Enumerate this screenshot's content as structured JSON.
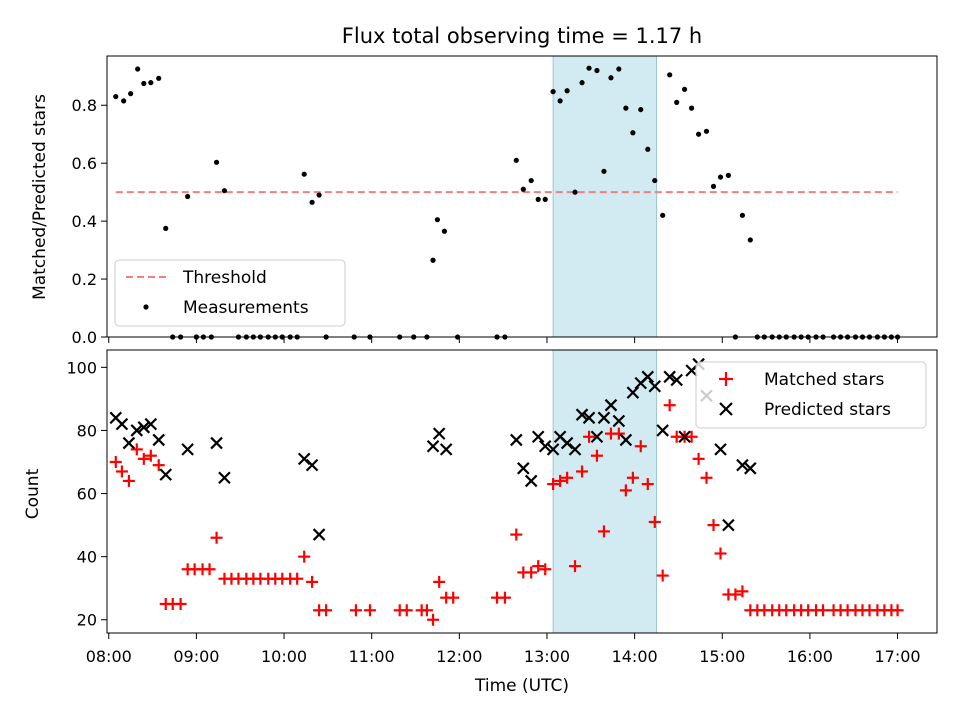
{
  "title": "Flux total observing time = 1.17 h",
  "colors": {
    "threshold": "#f08080",
    "measurement": "#000000",
    "matched": "#ff0000",
    "predicted": "#000000",
    "highlight": "#add8e6"
  },
  "chart_data": [
    {
      "type": "scatter",
      "name": "ratio",
      "title": "Flux total observing time = 1.17 h",
      "xlabel": "",
      "ylabel": "Matched/Predicted stars",
      "xlim": [
        7.98,
        17.45
      ],
      "ylim": [
        0,
        0.97
      ],
      "yticks": [
        0,
        0.2,
        0.4,
        0.6,
        0.8
      ],
      "ytick_labels": [
        "0.0",
        "0.2",
        "0.4",
        "0.6",
        "0.8"
      ],
      "highlight_x": [
        13.07,
        14.25
      ],
      "threshold": {
        "y": 0.5,
        "x": [
          8.08,
          17.0
        ],
        "label": "Threshold"
      },
      "legend": {
        "position": "lower-left",
        "entries": [
          "Threshold",
          "Measurements"
        ]
      },
      "series": [
        {
          "name": "Measurements",
          "marker": "dot",
          "points": [
            [
              8.08,
              0.83
            ],
            [
              8.17,
              0.815
            ],
            [
              8.25,
              0.84
            ],
            [
              8.33,
              0.925
            ],
            [
              8.4,
              0.875
            ],
            [
              8.48,
              0.878
            ],
            [
              8.57,
              0.893
            ],
            [
              8.65,
              0.375
            ],
            [
              8.73,
              0
            ],
            [
              8.82,
              0
            ],
            [
              8.9,
              0.485
            ],
            [
              9.0,
              0
            ],
            [
              9.08,
              0
            ],
            [
              9.17,
              0
            ],
            [
              9.23,
              0.603
            ],
            [
              9.32,
              0.505
            ],
            [
              9.48,
              0
            ],
            [
              9.57,
              0
            ],
            [
              9.65,
              0
            ],
            [
              9.73,
              0
            ],
            [
              9.82,
              0
            ],
            [
              9.9,
              0
            ],
            [
              9.98,
              0
            ],
            [
              10.07,
              0
            ],
            [
              10.15,
              0
            ],
            [
              10.23,
              0.562
            ],
            [
              10.32,
              0.465
            ],
            [
              10.4,
              0.49
            ],
            [
              10.48,
              0
            ],
            [
              10.8,
              0
            ],
            [
              10.98,
              0
            ],
            [
              11.32,
              0
            ],
            [
              11.48,
              0
            ],
            [
              11.63,
              0
            ],
            [
              11.7,
              0.265
            ],
            [
              11.75,
              0.405
            ],
            [
              11.83,
              0.365
            ],
            [
              11.98,
              0
            ],
            [
              12.43,
              0
            ],
            [
              12.52,
              0
            ],
            [
              12.65,
              0.61
            ],
            [
              12.73,
              0.51
            ],
            [
              12.82,
              0.54
            ],
            [
              12.9,
              0.475
            ],
            [
              12.98,
              0.475
            ],
            [
              13.07,
              0.847
            ],
            [
              13.15,
              0.815
            ],
            [
              13.23,
              0.85
            ],
            [
              13.32,
              0.5
            ],
            [
              13.4,
              0.878
            ],
            [
              13.48,
              0.928
            ],
            [
              13.57,
              0.92
            ],
            [
              13.65,
              0.572
            ],
            [
              13.73,
              0.895
            ],
            [
              13.82,
              0.925
            ],
            [
              13.9,
              0.79
            ],
            [
              13.98,
              0.705
            ],
            [
              14.07,
              0.785
            ],
            [
              14.15,
              0.648
            ],
            [
              14.23,
              0.54
            ],
            [
              14.32,
              0.42
            ],
            [
              14.4,
              0.905
            ],
            [
              14.48,
              0.81
            ],
            [
              14.57,
              0.855
            ],
            [
              14.65,
              0.79
            ],
            [
              14.73,
              0.7
            ],
            [
              14.82,
              0.71
            ],
            [
              14.9,
              0.52
            ],
            [
              14.98,
              0.552
            ],
            [
              15.07,
              0.558
            ],
            [
              15.15,
              0
            ],
            [
              15.23,
              0.42
            ],
            [
              15.32,
              0.335
            ],
            [
              15.4,
              0
            ],
            [
              15.48,
              0
            ],
            [
              15.57,
              0
            ],
            [
              15.65,
              0
            ],
            [
              15.73,
              0
            ],
            [
              15.82,
              0
            ],
            [
              15.9,
              0
            ],
            [
              15.98,
              0
            ],
            [
              16.07,
              0
            ],
            [
              16.15,
              0
            ],
            [
              16.27,
              0
            ],
            [
              16.35,
              0
            ],
            [
              16.43,
              0
            ],
            [
              16.52,
              0
            ],
            [
              16.6,
              0
            ],
            [
              16.68,
              0
            ],
            [
              16.77,
              0
            ],
            [
              16.85,
              0
            ],
            [
              16.93,
              0
            ],
            [
              17.0,
              0
            ]
          ]
        }
      ]
    },
    {
      "type": "scatter",
      "name": "count",
      "title": "",
      "xlabel": "Time (UTC)",
      "ylabel": "Count",
      "xlim": [
        7.98,
        17.45
      ],
      "ylim": [
        15.8,
        105.5
      ],
      "yticks": [
        20,
        40,
        60,
        80,
        100
      ],
      "ytick_labels": [
        "20",
        "40",
        "60",
        "80",
        "100"
      ],
      "xticks": [
        8,
        9,
        10,
        11,
        12,
        13,
        14,
        15,
        16,
        17
      ],
      "xtick_labels": [
        "08:00",
        "09:00",
        "10:00",
        "11:00",
        "12:00",
        "13:00",
        "14:00",
        "15:00",
        "16:00",
        "17:00"
      ],
      "highlight_x": [
        13.07,
        14.25
      ],
      "legend": {
        "position": "top-right",
        "entries": [
          "Matched stars",
          "Predicted stars"
        ]
      },
      "series": [
        {
          "name": "Matched stars",
          "marker": "plus",
          "points": [
            [
              8.08,
              70
            ],
            [
              8.15,
              67
            ],
            [
              8.23,
              64
            ],
            [
              8.32,
              74
            ],
            [
              8.4,
              71
            ],
            [
              8.48,
              72
            ],
            [
              8.57,
              69
            ],
            [
              8.65,
              25
            ],
            [
              8.73,
              25
            ],
            [
              8.82,
              25
            ],
            [
              8.9,
              36
            ],
            [
              8.98,
              36
            ],
            [
              9.07,
              36
            ],
            [
              9.15,
              36
            ],
            [
              9.23,
              46
            ],
            [
              9.32,
              33
            ],
            [
              9.4,
              33
            ],
            [
              9.48,
              33
            ],
            [
              9.57,
              33
            ],
            [
              9.65,
              33
            ],
            [
              9.73,
              33
            ],
            [
              9.82,
              33
            ],
            [
              9.9,
              33
            ],
            [
              9.98,
              33
            ],
            [
              10.07,
              33
            ],
            [
              10.15,
              33
            ],
            [
              10.23,
              40
            ],
            [
              10.32,
              32
            ],
            [
              10.4,
              23
            ],
            [
              10.48,
              23
            ],
            [
              10.82,
              23
            ],
            [
              10.98,
              23
            ],
            [
              11.32,
              23
            ],
            [
              11.4,
              23
            ],
            [
              11.57,
              23
            ],
            [
              11.63,
              23
            ],
            [
              11.7,
              20
            ],
            [
              11.77,
              32
            ],
            [
              11.85,
              27
            ],
            [
              11.93,
              27
            ],
            [
              12.43,
              27
            ],
            [
              12.52,
              27
            ],
            [
              12.65,
              47
            ],
            [
              12.73,
              35
            ],
            [
              12.82,
              35
            ],
            [
              12.9,
              37
            ],
            [
              12.98,
              36
            ],
            [
              13.07,
              63
            ],
            [
              13.15,
              64
            ],
            [
              13.23,
              65
            ],
            [
              13.32,
              37
            ],
            [
              13.4,
              67
            ],
            [
              13.48,
              78
            ],
            [
              13.57,
              72
            ],
            [
              13.65,
              48
            ],
            [
              13.73,
              79
            ],
            [
              13.82,
              79
            ],
            [
              13.9,
              61
            ],
            [
              13.98,
              65
            ],
            [
              14.07,
              75
            ],
            [
              14.15,
              63
            ],
            [
              14.23,
              51
            ],
            [
              14.32,
              34
            ],
            [
              14.4,
              88
            ],
            [
              14.48,
              78
            ],
            [
              14.57,
              78
            ],
            [
              14.65,
              78
            ],
            [
              14.73,
              71
            ],
            [
              14.82,
              65
            ],
            [
              14.9,
              50
            ],
            [
              14.98,
              41
            ],
            [
              15.07,
              28
            ],
            [
              15.15,
              28
            ],
            [
              15.23,
              29
            ],
            [
              15.32,
              23
            ],
            [
              15.4,
              23
            ],
            [
              15.48,
              23
            ],
            [
              15.57,
              23
            ],
            [
              15.65,
              23
            ],
            [
              15.73,
              23
            ],
            [
              15.82,
              23
            ],
            [
              15.9,
              23
            ],
            [
              15.98,
              23
            ],
            [
              16.07,
              23
            ],
            [
              16.15,
              23
            ],
            [
              16.27,
              23
            ],
            [
              16.35,
              23
            ],
            [
              16.43,
              23
            ],
            [
              16.52,
              23
            ],
            [
              16.6,
              23
            ],
            [
              16.68,
              23
            ],
            [
              16.77,
              23
            ],
            [
              16.85,
              23
            ],
            [
              16.93,
              23
            ],
            [
              17.0,
              23
            ]
          ]
        },
        {
          "name": "Predicted stars",
          "marker": "x",
          "points": [
            [
              8.08,
              84
            ],
            [
              8.15,
              82
            ],
            [
              8.23,
              76
            ],
            [
              8.32,
              80
            ],
            [
              8.4,
              81
            ],
            [
              8.48,
              82
            ],
            [
              8.57,
              77
            ],
            [
              8.65,
              66
            ],
            [
              8.9,
              74
            ],
            [
              9.23,
              76
            ],
            [
              9.32,
              65
            ],
            [
              10.23,
              71
            ],
            [
              10.32,
              69
            ],
            [
              10.4,
              47
            ],
            [
              11.7,
              75
            ],
            [
              11.77,
              79
            ],
            [
              11.85,
              74
            ],
            [
              12.65,
              77
            ],
            [
              12.73,
              68
            ],
            [
              12.82,
              64
            ],
            [
              12.9,
              78
            ],
            [
              12.98,
              75
            ],
            [
              13.07,
              74
            ],
            [
              13.15,
              78
            ],
            [
              13.23,
              76
            ],
            [
              13.32,
              74
            ],
            [
              13.4,
              85
            ],
            [
              13.48,
              84
            ],
            [
              13.57,
              78
            ],
            [
              13.65,
              84
            ],
            [
              13.73,
              88
            ],
            [
              13.82,
              83
            ],
            [
              13.9,
              77
            ],
            [
              13.98,
              92
            ],
            [
              14.07,
              95
            ],
            [
              14.15,
              97
            ],
            [
              14.23,
              94
            ],
            [
              14.32,
              80
            ],
            [
              14.4,
              97
            ],
            [
              14.48,
              96
            ],
            [
              14.57,
              78
            ],
            [
              14.65,
              99
            ],
            [
              14.73,
              101
            ],
            [
              14.82,
              91
            ],
            [
              14.98,
              74
            ],
            [
              15.07,
              50
            ],
            [
              15.23,
              69
            ],
            [
              15.32,
              68
            ]
          ]
        }
      ]
    }
  ]
}
